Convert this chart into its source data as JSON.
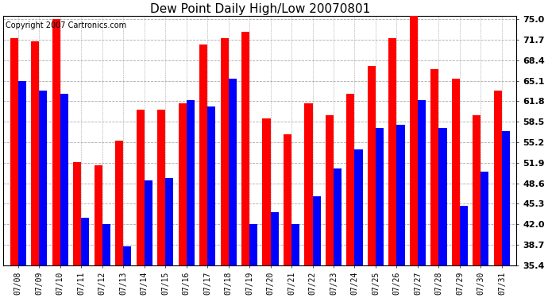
{
  "title": "Dew Point Daily High/Low 20070801",
  "copyright": "Copyright 2007 Cartronics.com",
  "dates": [
    "07/08",
    "07/09",
    "07/10",
    "07/11",
    "07/12",
    "07/13",
    "07/14",
    "07/15",
    "07/16",
    "07/17",
    "07/18",
    "07/19",
    "07/20",
    "07/21",
    "07/22",
    "07/23",
    "07/24",
    "07/25",
    "07/26",
    "07/27",
    "07/28",
    "07/29",
    "07/30",
    "07/31"
  ],
  "highs": [
    72.0,
    71.5,
    75.0,
    52.0,
    51.5,
    55.5,
    60.5,
    60.5,
    61.5,
    71.0,
    72.0,
    73.0,
    59.0,
    56.5,
    61.5,
    59.5,
    63.0,
    67.5,
    72.0,
    76.0,
    67.0,
    65.5,
    59.5,
    63.5
  ],
  "lows": [
    65.0,
    63.5,
    63.0,
    43.0,
    42.0,
    38.5,
    49.0,
    49.5,
    62.0,
    61.0,
    65.5,
    42.0,
    44.0,
    42.0,
    46.5,
    51.0,
    54.0,
    57.5,
    58.0,
    62.0,
    57.5,
    45.0,
    50.5,
    57.0
  ],
  "high_color": "#ff0000",
  "low_color": "#0000ff",
  "bg_color": "#ffffff",
  "grid_color": "#aaaaaa",
  "ylim_min": 35.4,
  "ylim_max": 75.0,
  "yticks": [
    35.4,
    38.7,
    42.0,
    45.3,
    48.6,
    51.9,
    55.2,
    58.5,
    61.8,
    65.1,
    68.4,
    71.7,
    75.0
  ],
  "bar_width": 0.38,
  "title_fontsize": 11,
  "copyright_fontsize": 7,
  "tick_fontsize": 8,
  "xtick_fontsize": 7
}
